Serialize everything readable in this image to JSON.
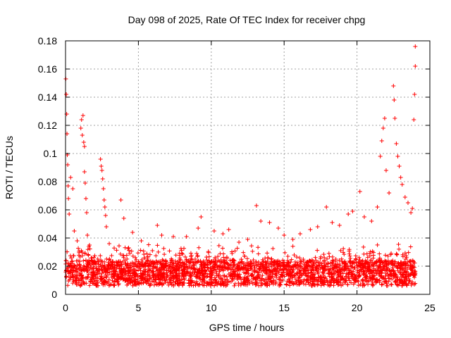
{
  "chart_data": {
    "type": "scatter",
    "title": "Day 098 of 2025, Rate Of TEC Index for receiver chpg",
    "xlabel": "GPS time / hours",
    "ylabel": "ROTI / TECUs",
    "xlim": [
      0,
      25
    ],
    "ylim": [
      0,
      0.18
    ],
    "grid": true,
    "marker": "+",
    "color": "#ff0000",
    "xticks": [
      0,
      5,
      10,
      15,
      20,
      25
    ],
    "xtick_labels": [
      "0",
      "5",
      "10",
      "15",
      "20",
      "25"
    ],
    "yticks": [
      0,
      0.02,
      0.04,
      0.06,
      0.08,
      0.1,
      0.12,
      0.14,
      0.16,
      0.18
    ],
    "ytick_labels": [
      "0",
      "0.02",
      "0.04",
      "0.06",
      "0.08",
      "0.1",
      "0.12",
      "0.14",
      "0.16",
      "0.18"
    ],
    "series": [
      {
        "name": "ROTI",
        "points": [
          [
            0.02,
            0.153
          ],
          [
            0.05,
            0.142
          ],
          [
            0.08,
            0.128
          ],
          [
            0.1,
            0.114
          ],
          [
            0.12,
            0.099
          ],
          [
            0.15,
            0.092
          ],
          [
            0.18,
            0.077
          ],
          [
            0.2,
            0.068
          ],
          [
            0.25,
            0.057
          ],
          [
            0.35,
            0.083
          ],
          [
            0.5,
            0.075
          ],
          [
            0.6,
            0.045
          ],
          [
            0.8,
            0.038
          ],
          [
            1.05,
            0.118
          ],
          [
            1.1,
            0.124
          ],
          [
            1.15,
            0.113
          ],
          [
            1.2,
            0.127
          ],
          [
            1.25,
            0.108
          ],
          [
            1.3,
            0.105
          ],
          [
            1.3,
            0.087
          ],
          [
            1.35,
            0.079
          ],
          [
            1.4,
            0.068
          ],
          [
            1.45,
            0.058
          ],
          [
            1.5,
            0.042
          ],
          [
            1.6,
            0.034
          ],
          [
            2.4,
            0.096
          ],
          [
            2.45,
            0.091
          ],
          [
            2.5,
            0.088
          ],
          [
            2.55,
            0.082
          ],
          [
            2.6,
            0.075
          ],
          [
            2.65,
            0.067
          ],
          [
            2.7,
            0.062
          ],
          [
            2.75,
            0.056
          ],
          [
            2.8,
            0.048
          ],
          [
            3.0,
            0.036
          ],
          [
            3.8,
            0.067
          ],
          [
            4.0,
            0.054
          ],
          [
            4.6,
            0.044
          ],
          [
            5.2,
            0.038
          ],
          [
            6.3,
            0.049
          ],
          [
            6.6,
            0.042
          ],
          [
            7.4,
            0.041
          ],
          [
            8.3,
            0.041
          ],
          [
            9.1,
            0.047
          ],
          [
            9.3,
            0.055
          ],
          [
            10.2,
            0.045
          ],
          [
            10.8,
            0.043
          ],
          [
            11.2,
            0.046
          ],
          [
            11.9,
            0.037
          ],
          [
            12.5,
            0.039
          ],
          [
            13.1,
            0.063
          ],
          [
            13.4,
            0.052
          ],
          [
            14.0,
            0.051
          ],
          [
            14.6,
            0.047
          ],
          [
            15.0,
            0.042
          ],
          [
            15.6,
            0.039
          ],
          [
            16.1,
            0.043
          ],
          [
            16.8,
            0.046
          ],
          [
            17.3,
            0.048
          ],
          [
            17.9,
            0.062
          ],
          [
            18.3,
            0.051
          ],
          [
            18.8,
            0.049
          ],
          [
            19.4,
            0.057
          ],
          [
            19.7,
            0.059
          ],
          [
            20.2,
            0.073
          ],
          [
            20.5,
            0.055
          ],
          [
            21.0,
            0.052
          ],
          [
            21.4,
            0.062
          ],
          [
            21.6,
            0.098
          ],
          [
            21.7,
            0.109
          ],
          [
            21.8,
            0.118
          ],
          [
            21.9,
            0.125
          ],
          [
            22.0,
            0.088
          ],
          [
            22.2,
            0.072
          ],
          [
            22.5,
            0.148
          ],
          [
            22.55,
            0.138
          ],
          [
            22.6,
            0.125
          ],
          [
            22.7,
            0.107
          ],
          [
            22.8,
            0.098
          ],
          [
            22.9,
            0.091
          ],
          [
            23.0,
            0.083
          ],
          [
            23.1,
            0.078
          ],
          [
            23.3,
            0.069
          ],
          [
            23.5,
            0.065
          ],
          [
            23.7,
            0.058
          ],
          [
            23.8,
            0.061
          ],
          [
            23.9,
            0.124
          ],
          [
            23.95,
            0.142
          ],
          [
            24.0,
            0.176
          ],
          [
            24.0,
            0.162
          ]
        ]
      }
    ]
  }
}
